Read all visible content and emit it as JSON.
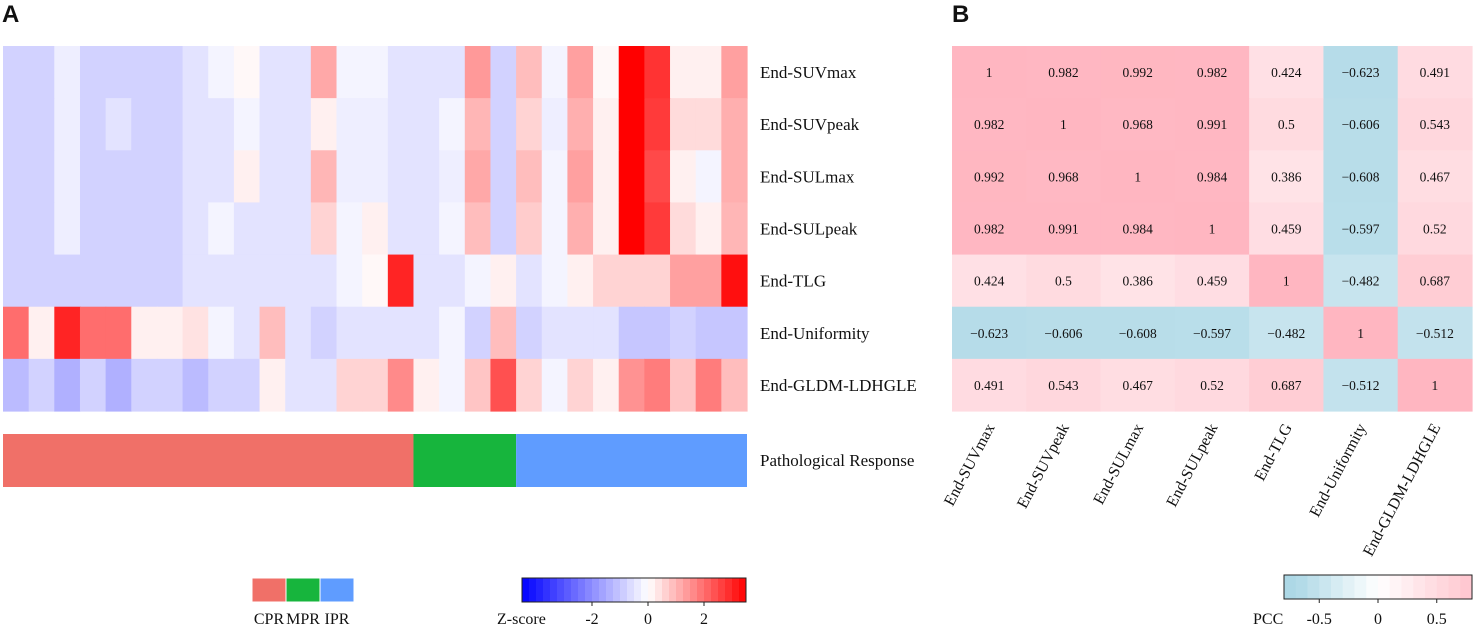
{
  "figure": {
    "panel_a_label": "A",
    "panel_b_label": "B",
    "colors": {
      "neg": "#0000ff",
      "pos": "#ff0000",
      "cpr": "#f07068",
      "mpr": "#17b53d",
      "ipr": "#5f9cff",
      "pcc_neg": "#add8e6",
      "pcc_pos": "#ffb6c1"
    }
  },
  "chart_data": [
    {
      "type": "heatmap",
      "title": "",
      "row_labels": [
        "End-SUVmax",
        "End-SUVpeak",
        "End-SULmax",
        "End-SULpeak",
        "End-TLG",
        "End-Uniformity",
        "End-GLDM-LDHGLE"
      ],
      "columns": 29,
      "values": [
        [
          -0.8,
          -0.8,
          -0.3,
          -0.8,
          -0.8,
          -0.8,
          -0.8,
          -0.5,
          -0.2,
          0.1,
          -0.5,
          -0.5,
          1.2,
          -0.2,
          -0.2,
          -0.5,
          -0.5,
          -0.5,
          1.4,
          -0.8,
          0.9,
          -0.2,
          1.3,
          0.1,
          3.5,
          2.8,
          0.2,
          0.2,
          1.3
        ],
        [
          -0.8,
          -0.8,
          -0.3,
          -0.8,
          -0.5,
          -0.8,
          -0.8,
          -0.5,
          -0.5,
          -0.2,
          -0.5,
          -0.5,
          0.2,
          -0.3,
          -0.3,
          -0.5,
          -0.5,
          -0.2,
          1.0,
          -0.8,
          0.6,
          -0.3,
          1.1,
          0.2,
          3.6,
          2.7,
          0.5,
          0.5,
          1.1
        ],
        [
          -0.8,
          -0.8,
          -0.3,
          -0.8,
          -0.8,
          -0.8,
          -0.8,
          -0.5,
          -0.5,
          0.2,
          -0.5,
          -0.5,
          1.0,
          -0.3,
          -0.3,
          -0.5,
          -0.5,
          -0.3,
          1.2,
          -0.8,
          0.9,
          -0.2,
          1.3,
          0.2,
          3.6,
          2.5,
          0.2,
          -0.2,
          1.1
        ],
        [
          -0.8,
          -0.8,
          -0.3,
          -0.8,
          -0.8,
          -0.8,
          -0.8,
          -0.5,
          -0.2,
          -0.5,
          -0.5,
          -0.5,
          0.6,
          -0.2,
          0.2,
          -0.5,
          -0.5,
          -0.2,
          0.9,
          -0.8,
          0.7,
          -0.2,
          1.1,
          0.2,
          3.6,
          2.7,
          0.5,
          0.2,
          1.0
        ],
        [
          -0.8,
          -0.8,
          -0.8,
          -0.8,
          -0.8,
          -0.8,
          -0.8,
          -0.5,
          -0.5,
          -0.5,
          -0.5,
          -0.5,
          -0.5,
          -0.2,
          0.1,
          3.0,
          -0.5,
          -0.5,
          -0.2,
          0.2,
          -0.5,
          -0.2,
          0.2,
          0.6,
          0.6,
          0.6,
          1.3,
          1.3,
          3.3
        ],
        [
          2.0,
          0.2,
          3.0,
          2.0,
          2.0,
          0.2,
          0.2,
          0.4,
          -0.2,
          -0.5,
          0.9,
          -0.5,
          -0.8,
          -0.5,
          -0.5,
          -0.5,
          -0.5,
          -0.2,
          -0.8,
          0.9,
          -0.8,
          -0.5,
          -0.5,
          -0.5,
          -1.0,
          -1.0,
          -0.8,
          -1.0,
          -1.0
        ],
        [
          -1.2,
          -0.8,
          -1.4,
          -0.8,
          -1.4,
          -0.8,
          -0.8,
          -1.2,
          -0.8,
          -0.8,
          0.2,
          -0.5,
          -0.5,
          0.6,
          0.6,
          1.6,
          0.2,
          -0.2,
          0.8,
          2.4,
          0.6,
          -0.2,
          0.6,
          0.2,
          1.5,
          1.8,
          0.8,
          1.8,
          0.9
        ]
      ],
      "response_bar": {
        "label": "Pathological Response",
        "segments": [
          {
            "name": "CPR",
            "count": 16
          },
          {
            "name": "MPR",
            "count": 4
          },
          {
            "name": "IPR",
            "count": 9
          }
        ]
      },
      "response_legend": [
        "CPR",
        "MPR",
        "IPR"
      ],
      "colorbar": {
        "label": "Z-score",
        "range": [
          -4.5,
          3.5
        ],
        "ticks": [
          -2,
          0,
          2
        ],
        "tick_labels": [
          "-2",
          "0",
          "2"
        ]
      }
    },
    {
      "type": "heatmap",
      "title": "",
      "row_labels": [
        "End-SUVmax",
        "End-SUVpeak",
        "End-SULmax",
        "End-SULpeak",
        "End-TLG",
        "End-Uniformity",
        "End-GLDM-LDHGLE"
      ],
      "col_labels": [
        "End-SUVmax",
        "End-SUVpeak",
        "End-SULmax",
        "End-SULpeak",
        "End-TLG",
        "End-Uniformity",
        "End-GLDM-LDHGLE"
      ],
      "values": [
        [
          1,
          0.982,
          0.992,
          0.982,
          0.424,
          -0.623,
          0.491
        ],
        [
          0.982,
          1,
          0.968,
          0.991,
          0.5,
          -0.606,
          0.543
        ],
        [
          0.992,
          0.968,
          1,
          0.984,
          0.386,
          -0.608,
          0.467
        ],
        [
          0.982,
          0.991,
          0.984,
          1,
          0.459,
          -0.597,
          0.52
        ],
        [
          0.424,
          0.5,
          0.386,
          0.459,
          1,
          -0.482,
          0.687
        ],
        [
          -0.623,
          -0.606,
          -0.608,
          -0.597,
          -0.482,
          1,
          -0.512
        ],
        [
          0.491,
          0.543,
          0.467,
          0.52,
          0.687,
          -0.512,
          1
        ]
      ],
      "cell_labels": [
        [
          "1",
          "0.982",
          "0.992",
          "0.982",
          "0.424",
          "−0.623",
          "0.491"
        ],
        [
          "0.982",
          "1",
          "0.968",
          "0.991",
          "0.5",
          "−0.606",
          "0.543"
        ],
        [
          "0.992",
          "0.968",
          "1",
          "0.984",
          "0.386",
          "−0.608",
          "0.467"
        ],
        [
          "0.982",
          "0.991",
          "0.984",
          "1",
          "0.459",
          "−0.597",
          "0.52"
        ],
        [
          "0.424",
          "0.5",
          "0.386",
          "0.459",
          "1",
          "−0.482",
          "0.687"
        ],
        [
          "−0.623",
          "−0.606",
          "−0.608",
          "−0.597",
          "−0.482",
          "1",
          "−0.512"
        ],
        [
          "0.491",
          "0.543",
          "0.467",
          "0.52",
          "0.687",
          "−0.512",
          "1"
        ]
      ],
      "colorbar": {
        "label": "PCC",
        "range": [
          -0.8,
          0.8
        ],
        "ticks": [
          -0.5,
          0,
          0.5
        ],
        "tick_labels": [
          "-0.5",
          "0",
          "0.5"
        ]
      }
    }
  ]
}
